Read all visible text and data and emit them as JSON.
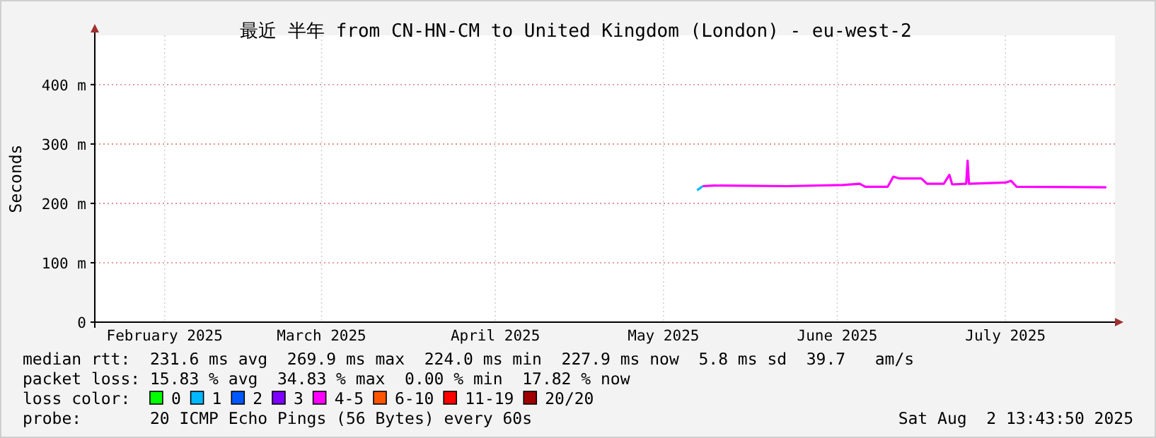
{
  "chart_data": {
    "type": "line",
    "title": "最近 半年 from CN-HN-CM to United Kingdom (London) - eu-west-2",
    "ylabel": "Seconds",
    "x": [
      "2025-05-20",
      "2025-05-21",
      "2025-05-23",
      "2025-06-05",
      "2025-06-15",
      "2025-06-18",
      "2025-06-19",
      "2025-06-23",
      "2025-06-24",
      "2025-06-25",
      "2025-06-29",
      "2025-06-30",
      "2025-07-03",
      "2025-07-04",
      "2025-07-04T12:00",
      "2025-07-07",
      "2025-07-07T06:00",
      "2025-07-07T12:00",
      "2025-07-14",
      "2025-07-15",
      "2025-07-16",
      "2025-08-01"
    ],
    "xlim": [
      "2025-02-01T13:00",
      "2025-08-02T13:00"
    ],
    "xticks": [
      {
        "value": "2025-02-14",
        "label": "February 2025"
      },
      {
        "value": "2025-03-14",
        "label": "March 2025"
      },
      {
        "value": "2025-04-14",
        "label": "April 2025"
      },
      {
        "value": "2025-05-14",
        "label": "May 2025"
      },
      {
        "value": "2025-06-14",
        "label": "June 2025"
      },
      {
        "value": "2025-07-14",
        "label": "July 2025"
      }
    ],
    "ylim": [
      0,
      483
    ],
    "yticks": [
      {
        "value": 0,
        "label": "0"
      },
      {
        "value": 100,
        "label": "100 m"
      },
      {
        "value": 200,
        "label": "200 m"
      },
      {
        "value": 300,
        "label": "300 m"
      },
      {
        "value": 400,
        "label": "400 m"
      }
    ],
    "legend_title": "loss color:",
    "legend": "bottom",
    "grid": true,
    "marker": "none",
    "line_style": "solid",
    "series": [
      {
        "name": "0",
        "color": "#00ff00",
        "values": [
          null,
          null,
          null,
          null,
          null,
          null,
          null,
          null,
          null,
          null,
          null,
          null,
          null,
          null,
          null,
          null,
          null,
          null,
          null,
          null,
          null,
          null
        ]
      },
      {
        "name": "1",
        "color": "#00b8ff",
        "values": [
          222,
          229,
          null,
          null,
          null,
          null,
          null,
          null,
          null,
          null,
          null,
          null,
          null,
          null,
          null,
          null,
          null,
          null,
          null,
          null,
          null,
          null
        ]
      },
      {
        "name": "2",
        "color": "#0059ff",
        "values": [
          null,
          null,
          null,
          null,
          null,
          null,
          null,
          null,
          null,
          null,
          null,
          null,
          null,
          null,
          null,
          null,
          null,
          null,
          null,
          null,
          null,
          null
        ]
      },
      {
        "name": "3",
        "color": "#7e00ff",
        "values": [
          null,
          null,
          null,
          null,
          null,
          null,
          null,
          null,
          null,
          null,
          null,
          null,
          null,
          null,
          null,
          null,
          null,
          null,
          null,
          null,
          null,
          null
        ]
      },
      {
        "name": "4-5",
        "color": "#ff00fe",
        "values": [
          null,
          229,
          230,
          229,
          231,
          233,
          228,
          228,
          245,
          242,
          242,
          233,
          233,
          248,
          232,
          233,
          272,
          233,
          235,
          238,
          228,
          227
        ]
      },
      {
        "name": "6-10",
        "color": "#ff5500",
        "values": [
          null,
          null,
          null,
          null,
          null,
          null,
          null,
          null,
          null,
          null,
          null,
          null,
          null,
          null,
          null,
          null,
          null,
          null,
          null,
          null,
          null,
          null
        ]
      },
      {
        "name": "11-19",
        "color": "#ff0000",
        "values": [
          null,
          null,
          null,
          null,
          null,
          null,
          null,
          null,
          null,
          null,
          null,
          null,
          null,
          null,
          null,
          null,
          null,
          null,
          null,
          null,
          null,
          null
        ]
      },
      {
        "name": "20/20",
        "color": "#a10000",
        "values": [
          null,
          null,
          null,
          null,
          null,
          null,
          null,
          null,
          null,
          null,
          null,
          null,
          null,
          null,
          null,
          null,
          null,
          null,
          null,
          null,
          null,
          null
        ]
      }
    ],
    "annotations": [
      "median rtt:  231.6 ms avg  269.9 ms max  224.0 ms min  227.9 ms now  5.8 ms sd  39.7   am/s",
      "packet loss: 15.83 % avg  34.83 % max  0.00 % min  17.82 % now",
      "probe:       20 ICMP Echo Pings (56 Bytes) every 60s",
      "Sat Aug  2 13:43:50 2025"
    ]
  }
}
